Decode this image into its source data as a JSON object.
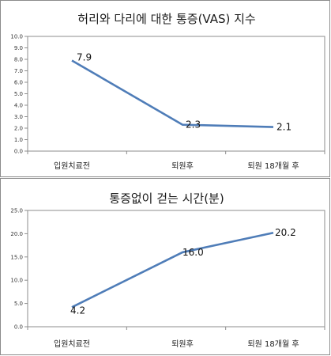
{
  "chart_data": [
    {
      "type": "line",
      "title": "허리와 다리에 대한 통증(VAS) 지수",
      "categories": [
        "입원치료전",
        "퇴원후",
        "퇴원 18개월 후"
      ],
      "series": [
        {
          "values": [
            7.9,
            2.3,
            2.1
          ],
          "labels": [
            "7.9",
            "2.3",
            "2.1"
          ]
        }
      ],
      "ylim": [
        0,
        10
      ],
      "yticks": [
        "0.0",
        "1.0",
        "2.0",
        "3.0",
        "4.0",
        "5.0",
        "6.0",
        "7.0",
        "8.0",
        "9.0",
        "10.0"
      ],
      "grid": false,
      "line_color": "#4f7db8"
    },
    {
      "type": "line",
      "title": "통증없이 걷는 시간(분)",
      "categories": [
        "입원치료전",
        "퇴원후",
        "퇴원 18개월 후"
      ],
      "series": [
        {
          "values": [
            4.2,
            16.0,
            20.2
          ],
          "labels": [
            "4.2",
            "16.0",
            "20.2"
          ]
        }
      ],
      "ylim": [
        0,
        25
      ],
      "yticks": [
        "0.0",
        "5.0",
        "10.0",
        "15.0",
        "20.0",
        "25.0"
      ],
      "grid": false,
      "line_color": "#4f7db8"
    }
  ]
}
